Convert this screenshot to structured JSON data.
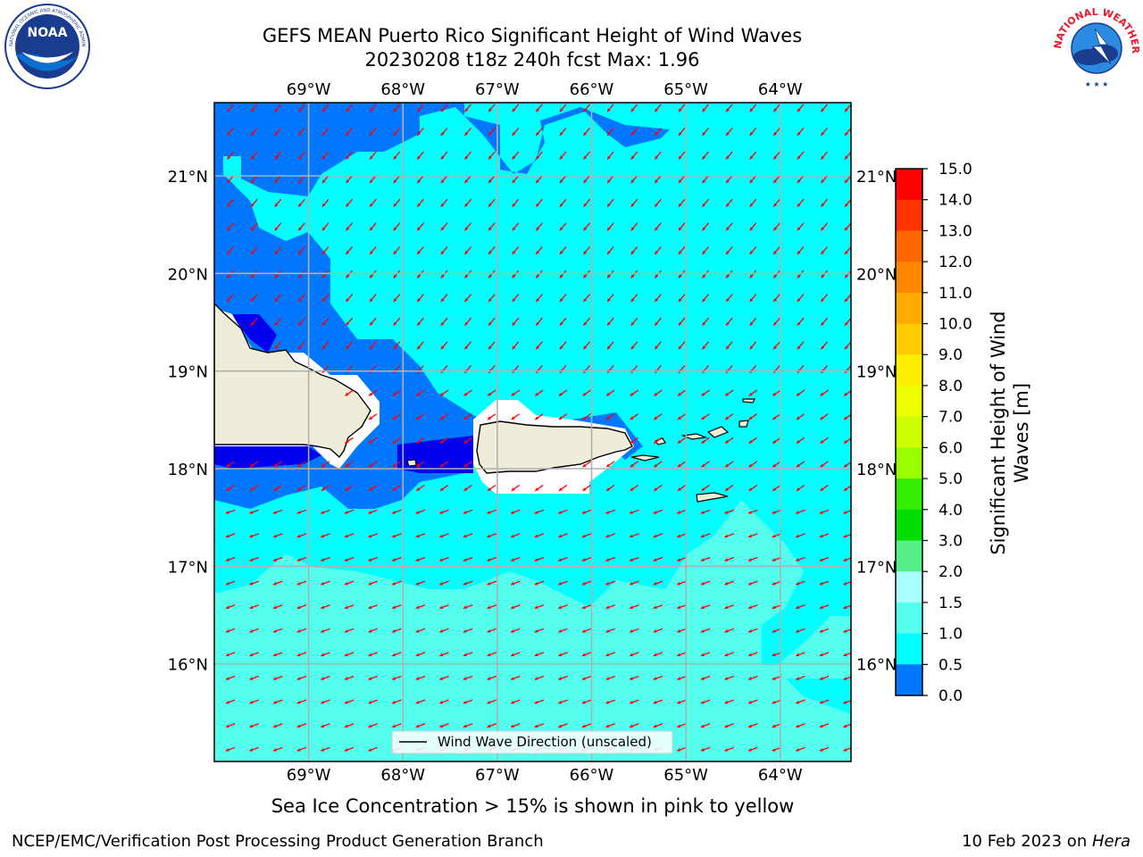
{
  "header": {
    "title_line1": "GEFS MEAN Puerto Rico Significant Height of Wind Waves",
    "title_line2": "20230208 t18z 240h fcst   Max: 1.96"
  },
  "logos": {
    "left": {
      "name": "NOAA",
      "text": "NOAA",
      "ring_text": "NATIONAL OCEANIC AND ATMOSPHERIC ADMINISTRATION · U.S. DEPARTMENT OF COMMERCE"
    },
    "right": {
      "name": "National Weather Service",
      "ring_text": "NATIONAL WEATHER SERVICE"
    }
  },
  "map": {
    "lon_labels": [
      "69°W",
      "68°W",
      "67°W",
      "66°W",
      "65°W",
      "64°W"
    ],
    "lon_values": [
      -69,
      -68,
      -67,
      -66,
      -65,
      -64
    ],
    "lat_labels": [
      "21°N",
      "20°N",
      "19°N",
      "18°N",
      "17°N",
      "16°N"
    ],
    "lat_values": [
      21,
      20,
      19,
      18,
      17,
      16
    ],
    "extent": {
      "lon_min": -70,
      "lon_max": -63.25,
      "lat_min": 15,
      "lat_max": 21.75
    },
    "grid": true,
    "legend": {
      "label": "Wind Wave Direction (unscaled)",
      "placement": "lower-center"
    },
    "arrow_color": "#ff0000",
    "land_color": "#efedd9",
    "wave_direction": "from east-northeast, pointing southwest"
  },
  "colorbar": {
    "label_line1": "Significant Height of Wind",
    "label_line2": "Waves [m]",
    "ticks": [
      "15.0",
      "14.0",
      "13.0",
      "12.0",
      "11.0",
      "10.0",
      "9.0",
      "8.0",
      "7.0",
      "6.0",
      "5.0",
      "4.0",
      "3.0",
      "2.0",
      "1.5",
      "1.0",
      "0.5",
      "0.0"
    ],
    "colors": [
      "#ff0000",
      "#ff3300",
      "#ff6600",
      "#ff8800",
      "#ffaa00",
      "#ffcc00",
      "#ffee00",
      "#eeff00",
      "#ccff00",
      "#99ff00",
      "#33ee00",
      "#00dd00",
      "#55ee88",
      "#aaffff",
      "#55ffee",
      "#00ffff",
      "#0077ff",
      "#0000ff"
    ]
  },
  "notes": {
    "sea_ice": "Sea Ice Concentration > 15% is shown in pink to yellow"
  },
  "footer": {
    "left": "NCEP/EMC/Verification Post Processing Product Generation Branch",
    "right_date": "10 Feb 2023 on ",
    "right_host": "Hera"
  }
}
